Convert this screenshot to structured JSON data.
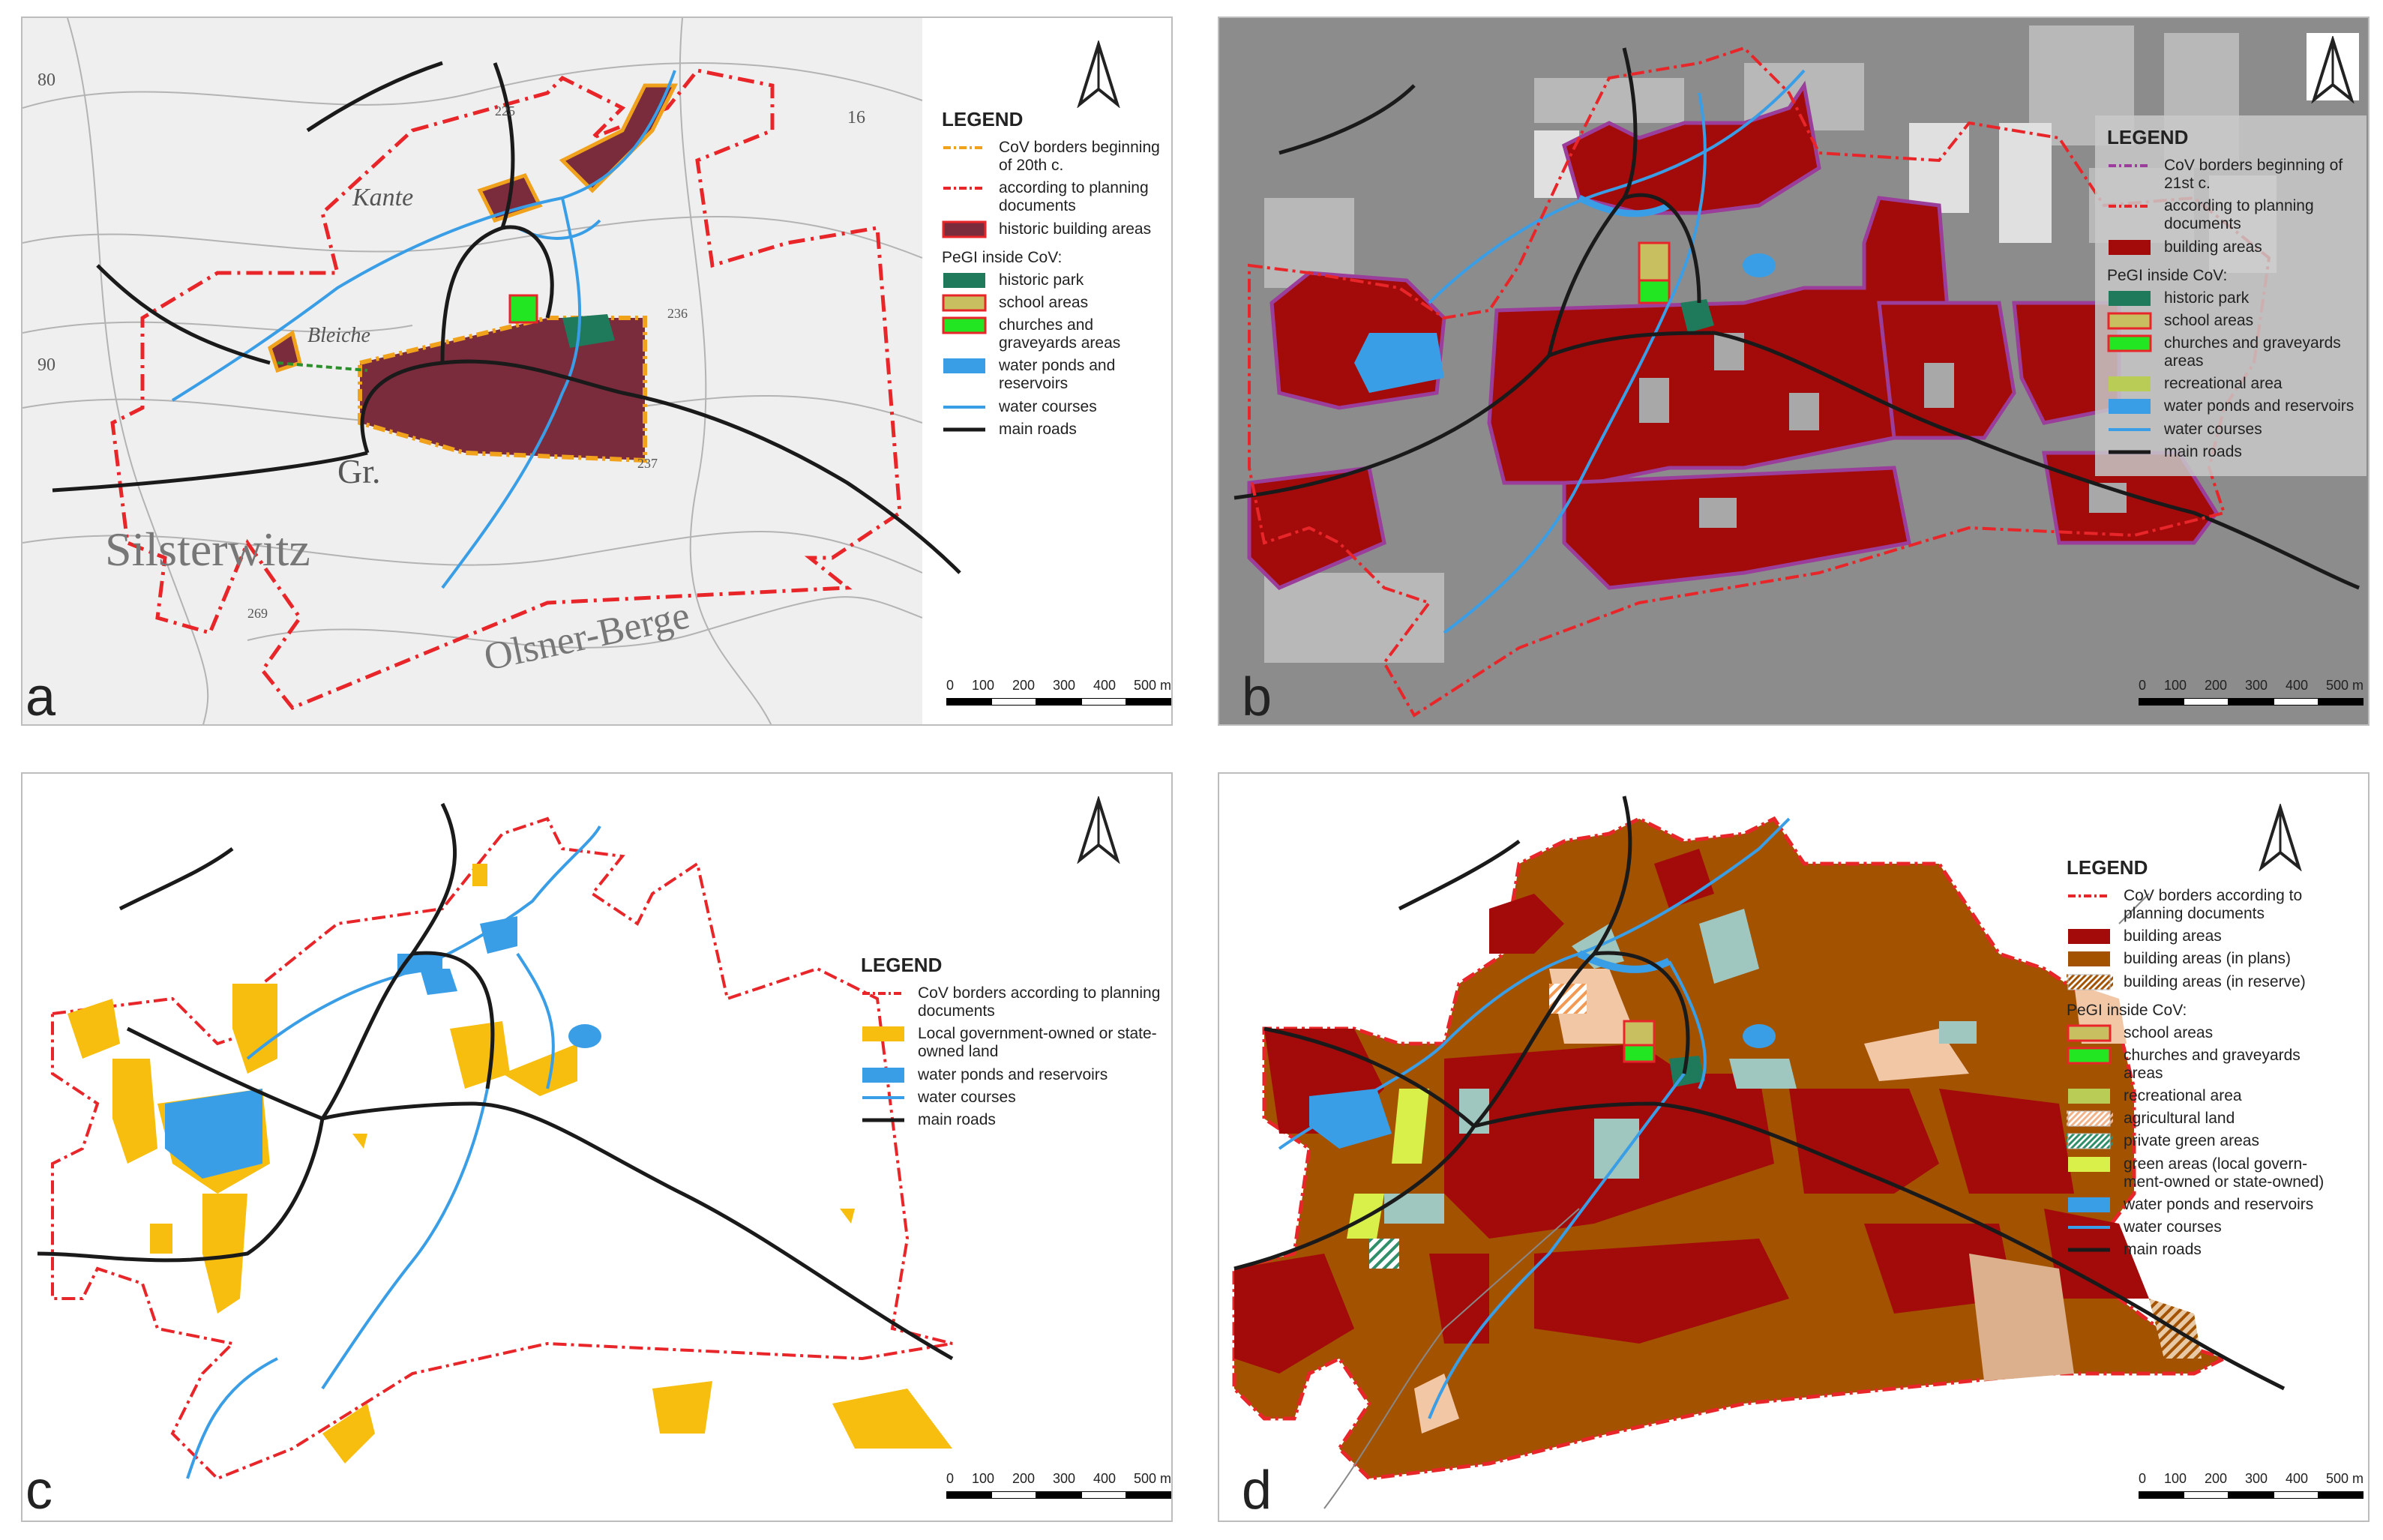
{
  "panels": [
    {
      "letter": "a",
      "legend": {
        "title": "LEGEND",
        "items": [
          {
            "symbol": "dash-orange",
            "label": "CoV borders beginning of 20th c."
          },
          {
            "symbol": "dash-red",
            "label": "according to planning documents"
          },
          {
            "symbol": "fill-historic",
            "label": "historic building areas"
          }
        ],
        "subheading": "PeGI inside CoV:",
        "sub_items": [
          {
            "symbol": "fill-park",
            "label": "historic park"
          },
          {
            "symbol": "fill-school",
            "label": "school areas"
          },
          {
            "symbol": "fill-church",
            "label": "churches and graveyards areas"
          },
          {
            "symbol": "fill-water",
            "label": "water ponds and reservoirs"
          },
          {
            "symbol": "line-water",
            "label": "water courses"
          },
          {
            "symbol": "line-road",
            "label": "main roads"
          }
        ]
      },
      "map_labels": [
        "Kante",
        "Bleiche",
        "Gr.",
        "Silsterwitz",
        "Olsner-Berge",
        "80",
        "90",
        "16",
        "225",
        "236",
        "237",
        "269"
      ]
    },
    {
      "letter": "b",
      "legend": {
        "title": "LEGEND",
        "items": [
          {
            "symbol": "dash-purple",
            "label": "CoV borders beginning of 21st c."
          },
          {
            "symbol": "dash-red",
            "label": "according to planning documents"
          },
          {
            "symbol": "fill-building",
            "label": "building areas"
          }
        ],
        "subheading": "PeGI inside CoV:",
        "sub_items": [
          {
            "symbol": "fill-park",
            "label": "historic park"
          },
          {
            "symbol": "fill-school",
            "label": "school areas"
          },
          {
            "symbol": "fill-church",
            "label": "churches and graveyards areas"
          },
          {
            "symbol": "fill-recreation",
            "label": "recreational area"
          },
          {
            "symbol": "fill-water",
            "label": "water ponds and reservoirs"
          },
          {
            "symbol": "line-water",
            "label": "water courses"
          },
          {
            "symbol": "line-road",
            "label": "main roads"
          }
        ]
      }
    },
    {
      "letter": "c",
      "legend": {
        "title": "LEGEND",
        "items": [
          {
            "symbol": "dash-red",
            "label": "CoV borders according to planning documents"
          },
          {
            "symbol": "fill-gov",
            "label": "Local government-owned or state-owned land"
          },
          {
            "symbol": "fill-water",
            "label": "water ponds and reservoirs"
          },
          {
            "symbol": "line-water",
            "label": "water courses"
          },
          {
            "symbol": "line-road",
            "label": "main roads"
          }
        ],
        "subheading": "",
        "sub_items": []
      }
    },
    {
      "letter": "d",
      "legend": {
        "title": "LEGEND",
        "items": [
          {
            "symbol": "dash-red",
            "label": "CoV borders according to planning documents"
          },
          {
            "symbol": "fill-building",
            "label": "building areas"
          },
          {
            "symbol": "fill-plans",
            "label": "building areas (in plans)"
          },
          {
            "symbol": "hatch-brown",
            "label": "building areas (in reserve)"
          }
        ],
        "subheading": "PeGI inside CoV:",
        "sub_items": [
          {
            "symbol": "fill-school",
            "label": "school areas"
          },
          {
            "symbol": "fill-church",
            "label": "churches and graveyards areas"
          },
          {
            "symbol": "fill-recreation",
            "label": "recreational area"
          },
          {
            "symbol": "hatch-orange",
            "label": "agricultural land"
          },
          {
            "symbol": "hatch-green",
            "label": "private green areas"
          },
          {
            "symbol": "fill-publicgreen",
            "label": "green areas (local govern-ment-owned or state-owned)"
          },
          {
            "symbol": "fill-water",
            "label": "water ponds and reservoirs"
          },
          {
            "symbol": "line-water",
            "label": "water courses"
          },
          {
            "symbol": "line-road",
            "label": "main roads"
          }
        ]
      }
    }
  ],
  "scalebar": {
    "ticks": [
      "0",
      "100",
      "200",
      "300",
      "400",
      "500 m"
    ]
  },
  "colors": {
    "border_red": "#e8262a",
    "border_orange": "#f0a21c",
    "border_purple": "#9b3d9b",
    "historic": "#7a2b3c",
    "building": "#a30b0b",
    "plans": "#a35200",
    "park": "#1f7a5c",
    "school": "#c8c060",
    "church": "#22e622",
    "recreation": "#b9cc55",
    "water": "#3a9ee6",
    "road": "#1a1a1a",
    "gov": "#f7be10",
    "publicgreen": "#d9f04a",
    "privategreen": "#2f8f6b",
    "agri": "#f2b38a"
  }
}
